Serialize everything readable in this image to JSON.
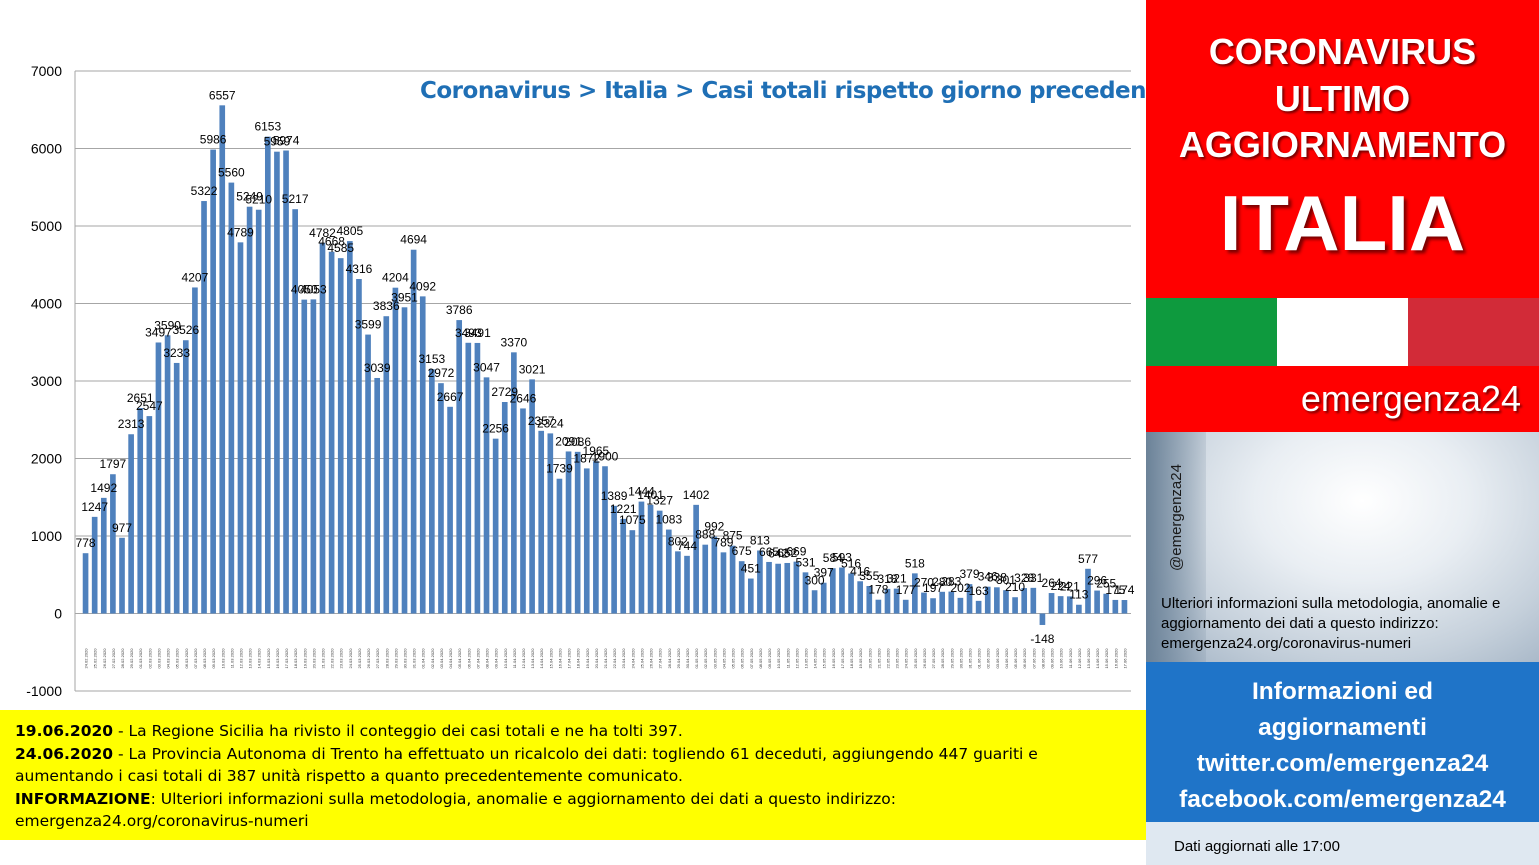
{
  "chart_data": {
    "type": "bar",
    "title": "Coronavirus > Italia > Casi totali rispetto giorno precedente",
    "xlabel": "",
    "ylabel": "",
    "ylim": [
      -1000,
      7000
    ],
    "yticks": [
      7000,
      6000,
      5000,
      4000,
      3000,
      2000,
      1000,
      0,
      -1000
    ],
    "grid": true,
    "bar_color": "#4f81bd",
    "values": [
      778,
      1247,
      1492,
      1797,
      977,
      2313,
      2651,
      2547,
      3497,
      3590,
      3233,
      3526,
      4207,
      5322,
      5986,
      6557,
      5560,
      4789,
      5249,
      5210,
      6153,
      5959,
      5974,
      5217,
      4050,
      4053,
      4782,
      4668,
      4585,
      4805,
      4316,
      3599,
      3039,
      3836,
      4204,
      3951,
      4694,
      4092,
      3153,
      2972,
      2667,
      3786,
      3493,
      3491,
      3047,
      2256,
      2729,
      3370,
      2646,
      3021,
      2357,
      2324,
      1739,
      2091,
      2086,
      1872,
      1965,
      1900,
      1389,
      1221,
      1075,
      1444,
      1401,
      1327,
      1083,
      802,
      744,
      1402,
      888,
      992,
      789,
      875,
      675,
      451,
      813,
      665,
      642,
      652,
      669,
      531,
      300,
      397,
      584,
      593,
      516,
      416,
      355,
      178,
      318,
      321,
      177,
      518,
      270,
      197,
      280,
      283,
      202,
      379,
      163,
      346,
      338,
      301,
      210,
      328,
      331,
      -148,
      264,
      224,
      221,
      113,
      577,
      296,
      255,
      175,
      174
    ],
    "categories": [
      "24.02.2020",
      "25.02.2020",
      "26.02.2020",
      "27.02.2020",
      "28.02.2020",
      "29.02.2020",
      "01.03.2020",
      "02.03.2020",
      "03.03.2020",
      "04.03.2020",
      "05.03.2020",
      "06.03.2020",
      "07.03.2020",
      "08.03.2020",
      "09.03.2020",
      "10.03.2020",
      "11.03.2020",
      "12.03.2020",
      "13.03.2020",
      "14.03.2020",
      "15.03.2020",
      "16.03.2020",
      "17.03.2020",
      "18.03.2020",
      "19.03.2020",
      "20.03.2020",
      "21.03.2020",
      "22.03.2020",
      "23.03.2020",
      "24.03.2020",
      "25.03.2020",
      "26.03.2020",
      "27.03.2020",
      "28.03.2020",
      "29.03.2020",
      "30.03.2020",
      "31.03.2020",
      "01.04.2020",
      "02.04.2020",
      "03.04.2020",
      "04.04.2020",
      "05.04.2020",
      "06.04.2020",
      "07.04.2020",
      "08.04.2020",
      "09.04.2020",
      "10.04.2020",
      "11.04.2020",
      "12.04.2020",
      "13.04.2020",
      "14.04.2020",
      "15.04.2020",
      "16.04.2020",
      "17.04.2020",
      "18.04.2020",
      "19.04.2020",
      "20.04.2020",
      "21.04.2020",
      "22.04.2020",
      "23.04.2020",
      "24.04.2020",
      "25.04.2020",
      "26.04.2020",
      "27.04.2020",
      "28.04.2020",
      "29.04.2020",
      "30.04.2020",
      "01.05.2020",
      "02.05.2020",
      "03.05.2020",
      "04.05.2020",
      "05.05.2020",
      "06.05.2020",
      "07.05.2020",
      "08.05.2020",
      "09.05.2020",
      "10.05.2020",
      "11.05.2020",
      "12.05.2020",
      "13.05.2020",
      "14.05.2020",
      "15.05.2020",
      "16.05.2020",
      "17.05.2020",
      "18.05.2020",
      "19.05.2020",
      "20.05.2020",
      "21.05.2020",
      "22.05.2020",
      "23.05.2020",
      "24.05.2020",
      "25.05.2020",
      "26.05.2020",
      "27.05.2020",
      "28.05.2020",
      "29.05.2020",
      "30.05.2020",
      "31.05.2020",
      "01.06.2020",
      "02.06.2020",
      "03.06.2020",
      "04.06.2020",
      "05.06.2020",
      "06.06.2020",
      "07.06.2020",
      "08.06.2020",
      "09.06.2020",
      "10.06.2020",
      "11.06.2020",
      "12.06.2020",
      "13.06.2020",
      "14.06.2020",
      "15.06.2020",
      "16.06.2020",
      "17.06.2020"
    ]
  },
  "notes": {
    "line1_date": "19.06.2020",
    "line1_text": " - La Regione Sicilia ha rivisto il conteggio dei casi totali e ne ha tolti 397.",
    "line2_date": "24.06.2020",
    "line2_text": " - La Provincia Autonoma di Trento ha effettuato un ricalcolo dei dati: togliendo 61 deceduti, aggiungendo 447 guariti e aumentando i casi totali di 387 unità rispetto a quanto precedentemente comunicato.",
    "line3_label": "INFORMAZIONE",
    "line3_text": ": Ulteriori informazioni sulla metodologia, anomalie e aggiornamento dei dati a questo indirizzo:",
    "line3_url": "emergenza24.org/coronavirus-numeri"
  },
  "sidebar": {
    "headline_1": "CORONAVIRUS",
    "headline_2": "ULTIMO",
    "headline_3": "AGGIORNAMENTO",
    "headline_4": "ITALIA",
    "brand": "emergenza24",
    "handle": "@emergenza24",
    "info_text": "Ulteriori informazioni sulla metodologia, anomalie e aggiornamento dei dati a questo indirizzo:",
    "info_url": "emergenza24.org/coronavirus-numeri",
    "blue_line1": "Informazioni ed",
    "blue_line2": "aggiornamenti",
    "blue_line3": "twitter.com/emergenza24",
    "blue_line4": "facebook.com/emergenza24",
    "updated": "Dati aggiornati alle 17:00"
  },
  "colors": {
    "accent_red": "#ff0000",
    "blue_panel": "#1f74c8",
    "title_blue": "#1f6fb5",
    "notes_yellow": "#ffff00",
    "flag_green": "#0e9a3e",
    "flag_red": "#d22b38"
  }
}
